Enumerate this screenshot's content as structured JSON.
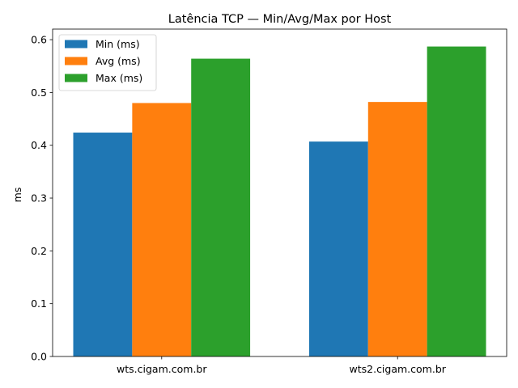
{
  "chart_data": {
    "type": "bar",
    "title": "Latência TCP — Min/Avg/Max por Host",
    "xlabel": "",
    "ylabel": "ms",
    "categories": [
      "wts.cigam.com.br",
      "wts2.cigam.com.br"
    ],
    "series": [
      {
        "name": "Min (ms)",
        "color": "#1f77b4",
        "values": [
          0.424,
          0.407
        ]
      },
      {
        "name": "Avg (ms)",
        "color": "#ff7f0e",
        "values": [
          0.48,
          0.482
        ]
      },
      {
        "name": "Max (ms)",
        "color": "#2ca02c",
        "values": [
          0.564,
          0.587
        ]
      }
    ],
    "ylim": [
      0,
      0.62
    ],
    "yticks": [
      "0.0",
      "0.1",
      "0.2",
      "0.3",
      "0.4",
      "0.5",
      "0.6"
    ],
    "grid": false,
    "legend_position": "top-left"
  }
}
